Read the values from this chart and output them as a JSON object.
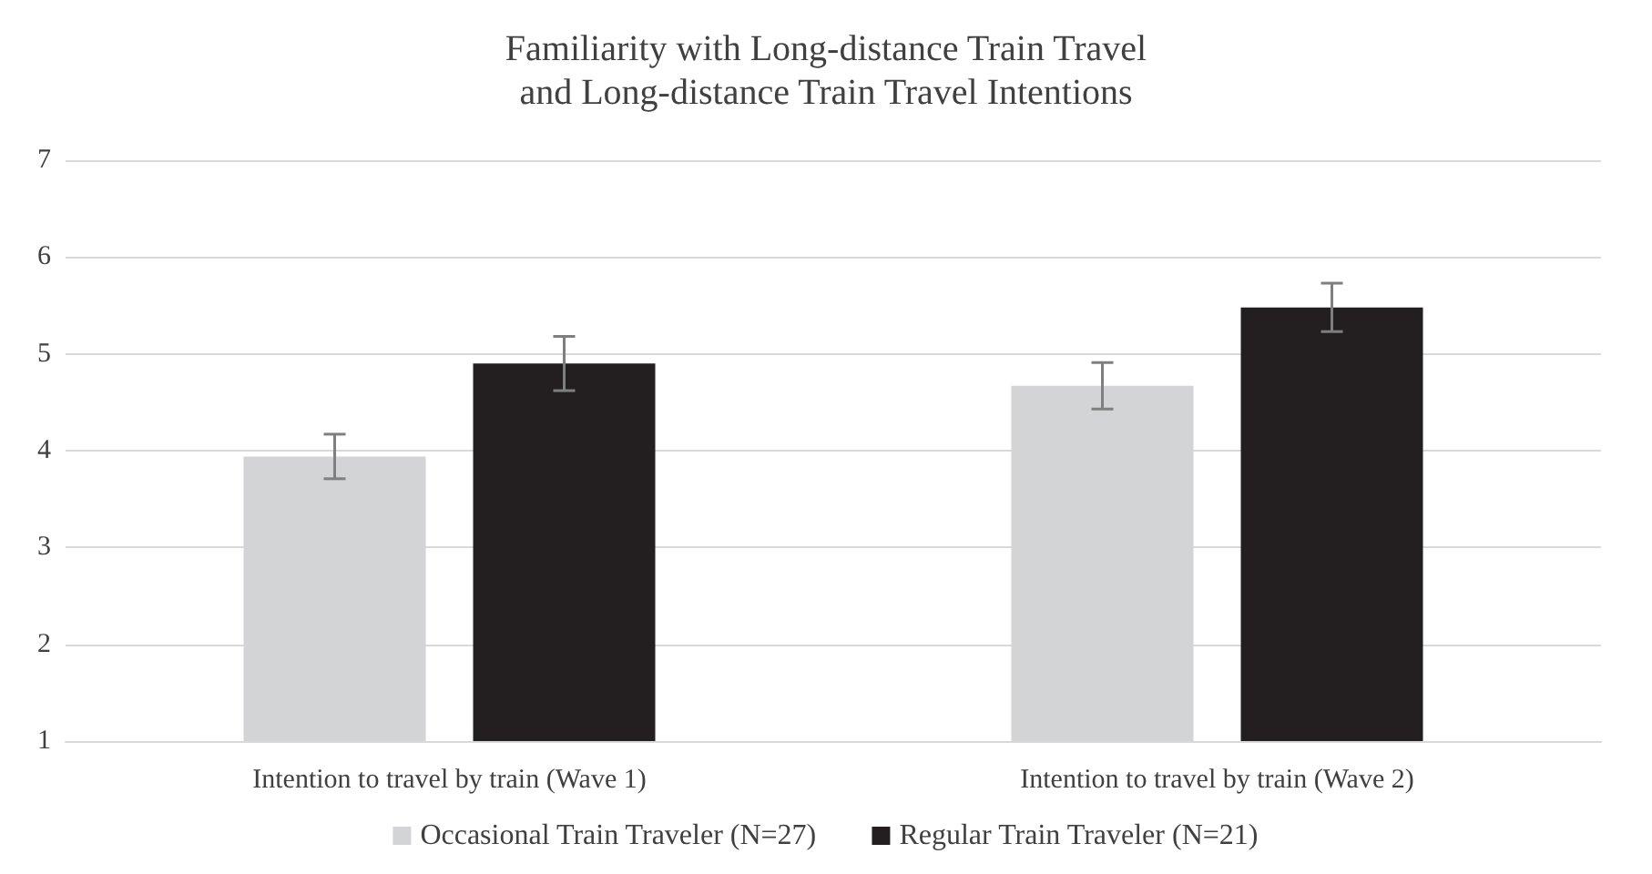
{
  "chart_data": {
    "type": "bar",
    "title": "Familiarity with Long-distance Train Travel\nand Long-distance Train Travel Intentions",
    "categories": [
      "Intention to travel by train (Wave 1)",
      "Intention to travel by train (Wave 2)"
    ],
    "series": [
      {
        "name": "Occasional Train Traveler (N=27)",
        "color": "#d3d4d6",
        "values": [
          3.94,
          4.67
        ],
        "errors": [
          0.23,
          0.24
        ]
      },
      {
        "name": "Regular Train Traveler (N=21)",
        "color": "#231f20",
        "values": [
          4.9,
          5.48
        ],
        "errors": [
          0.28,
          0.25
        ]
      }
    ],
    "ylim": [
      1,
      7
    ],
    "yticks": [
      1,
      2,
      3,
      4,
      5,
      6,
      7
    ],
    "grid": "y",
    "legend": "bottom"
  }
}
